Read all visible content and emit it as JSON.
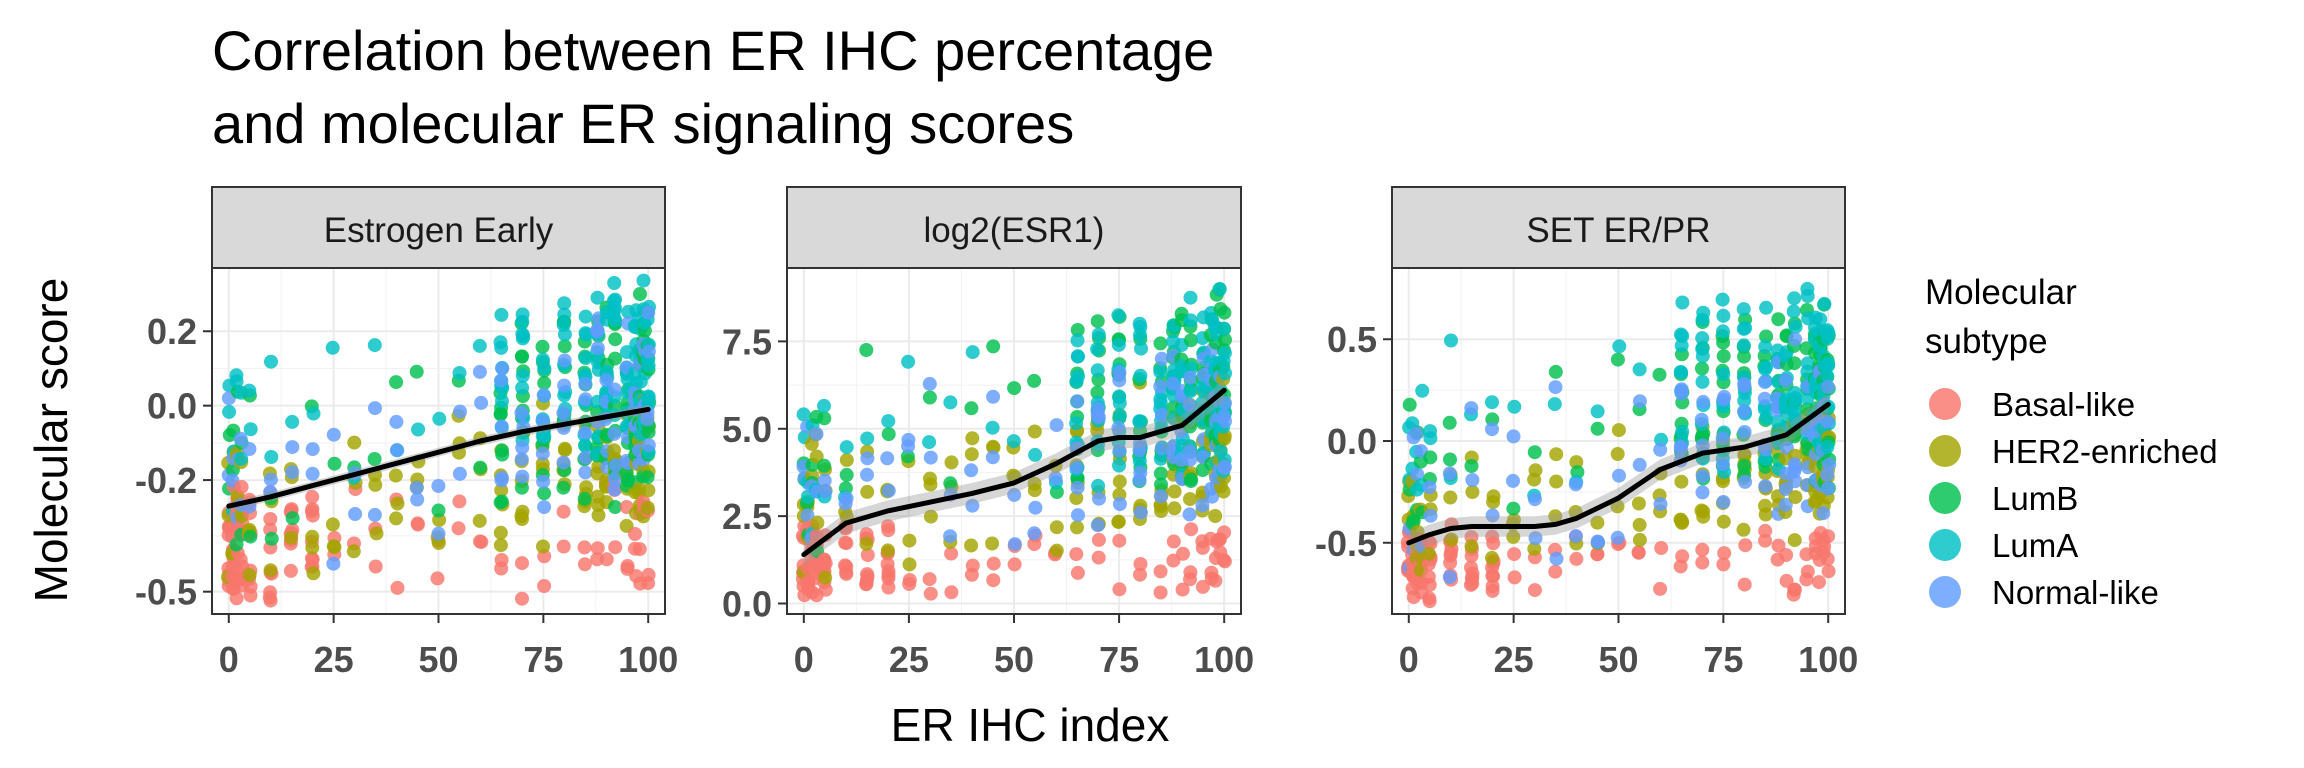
{
  "title_lines": [
    "Correlation between ER IHC percentage",
    "and molecular ER signaling scores"
  ],
  "chart_data": {
    "type": "scatter",
    "xlabel": "ER IHC index",
    "ylabel": "Molecular score",
    "xlim": [
      -4,
      104
    ],
    "x_ticks": [
      0,
      25,
      50,
      75,
      100
    ],
    "x_tick_labels": [
      "0",
      "25",
      "50",
      "75",
      "100"
    ],
    "x_levels": [
      0,
      1,
      2,
      3,
      5,
      10,
      15,
      20,
      25,
      30,
      35,
      40,
      45,
      50,
      55,
      60,
      65,
      70,
      75,
      80,
      85,
      88,
      90,
      92,
      95,
      97,
      98,
      99,
      100
    ],
    "grid": true,
    "legend": {
      "title": [
        "Molecular",
        "subtype"
      ],
      "position": "right",
      "entries": [
        {
          "label": "Basal-like",
          "color": "#F8766D"
        },
        {
          "label": "HER2-enriched",
          "color": "#A3A500"
        },
        {
          "label": "LumB",
          "color": "#00BF4F"
        },
        {
          "label": "LumA",
          "color": "#00BFC4"
        },
        {
          "label": "Normal-like",
          "color": "#619CFF"
        }
      ]
    },
    "panels": [
      {
        "strip": "Estrogen Early",
        "ylim": [
          -0.56,
          0.37
        ],
        "y_ticks": [
          -0.5,
          -0.2,
          0.0,
          0.2
        ],
        "y_tick_labels": [
          "-0.5",
          "-0.2",
          "0.0",
          "0.2"
        ],
        "trend_x": [
          0,
          10,
          20,
          30,
          40,
          50,
          60,
          70,
          80,
          90,
          100
        ],
        "trend_y": [
          -0.27,
          -0.245,
          -0.215,
          -0.185,
          -0.155,
          -0.125,
          -0.095,
          -0.07,
          -0.05,
          -0.03,
          -0.01
        ],
        "trend_band": 0.012,
        "subtype_ranges": {
          "Basal-like": [
            -0.55,
            -0.1
          ],
          "HER2-enriched": [
            -0.5,
            0.05
          ],
          "LumB": [
            -0.45,
            0.3
          ],
          "LumA": [
            -0.3,
            0.35
          ],
          "Normal-like": [
            -0.5,
            0.25
          ]
        }
      },
      {
        "strip": "log2(ESR1)",
        "ylim": [
          -0.3,
          9.6
        ],
        "y_ticks": [
          0.0,
          2.5,
          5.0,
          7.5
        ],
        "y_tick_labels": [
          "0.0",
          "2.5",
          "5.0",
          "7.5"
        ],
        "trend_x": [
          0,
          10,
          20,
          30,
          40,
          50,
          60,
          70,
          75,
          80,
          90,
          100
        ],
        "trend_y": [
          1.4,
          2.3,
          2.65,
          2.9,
          3.15,
          3.45,
          4.0,
          4.65,
          4.75,
          4.75,
          5.1,
          6.1
        ],
        "trend_band": 0.3,
        "subtype_ranges": {
          "Basal-like": [
            0.1,
            3.0
          ],
          "HER2-enriched": [
            0.4,
            6.5
          ],
          "LumB": [
            1.5,
            9.2
          ],
          "LumA": [
            2.0,
            9.0
          ],
          "Normal-like": [
            0.8,
            7.8
          ]
        }
      },
      {
        "strip": "SET ER/PR",
        "ylim": [
          -0.85,
          0.85
        ],
        "y_ticks": [
          -0.5,
          0.0,
          0.5
        ],
        "y_tick_labels": [
          "-0.5",
          "0.0",
          "0.5"
        ],
        "trend_x": [
          0,
          5,
          10,
          15,
          20,
          25,
          30,
          35,
          40,
          50,
          60,
          70,
          80,
          90,
          100
        ],
        "trend_y": [
          -0.5,
          -0.46,
          -0.43,
          -0.42,
          -0.42,
          -0.42,
          -0.42,
          -0.41,
          -0.38,
          -0.28,
          -0.14,
          -0.06,
          -0.03,
          0.03,
          0.18
        ],
        "trend_band": 0.05,
        "subtype_ranges": {
          "Basal-like": [
            -0.8,
            -0.3
          ],
          "HER2-enriched": [
            -0.7,
            0.2
          ],
          "LumB": [
            -0.6,
            0.7
          ],
          "LumA": [
            -0.4,
            0.78
          ],
          "Normal-like": [
            -0.75,
            0.5
          ]
        }
      }
    ]
  }
}
